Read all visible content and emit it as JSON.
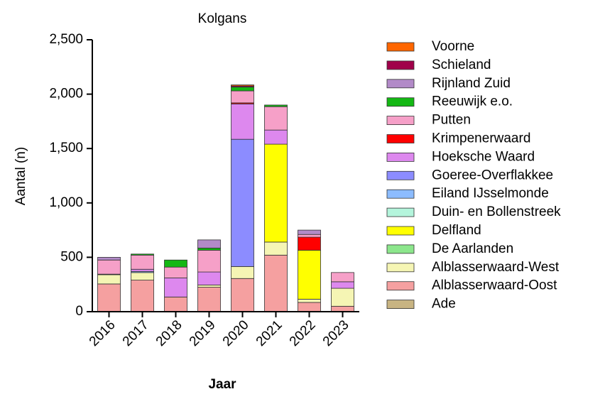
{
  "chart_data": {
    "type": "stacked_bar",
    "title": "Kolgans",
    "x_label": "Jaar",
    "y_label": "Aantal (n)",
    "categories": [
      "2016",
      "2017",
      "2018",
      "2019",
      "2020",
      "2021",
      "2022",
      "2023"
    ],
    "ylim": [
      0,
      2500
    ],
    "yticks": [
      0,
      500,
      {
        "value": 1000,
        "label": "1,000"
      },
      {
        "value": 1500,
        "label": "1,500"
      },
      {
        "value": 2000,
        "label": "2,000"
      },
      {
        "value": 2500,
        "label": "2,500"
      }
    ],
    "series": [
      {
        "name": "Ade",
        "color": "#c8b482",
        "values": [
          0,
          0,
          0,
          0,
          0,
          0,
          0,
          0
        ]
      },
      {
        "name": "Alblasserwaard-Oost",
        "color": "#f5a0a0",
        "values": [
          255,
          290,
          135,
          225,
          305,
          520,
          85,
          50
        ]
      },
      {
        "name": "Alblasserwaard-West",
        "color": "#f5f5b4",
        "values": [
          85,
          70,
          0,
          20,
          110,
          120,
          30,
          165
        ]
      },
      {
        "name": "De Aarlanden",
        "color": "#8ce68c",
        "values": [
          0,
          0,
          0,
          0,
          0,
          0,
          0,
          0
        ]
      },
      {
        "name": "Delfland",
        "color": "#ffff00",
        "values": [
          0,
          0,
          0,
          0,
          0,
          900,
          450,
          0
        ]
      },
      {
        "name": "Duin- en Bollenstreek",
        "color": "#b4f5dc",
        "values": [
          0,
          0,
          0,
          0,
          0,
          0,
          0,
          0
        ]
      },
      {
        "name": "Eiland IJsselmonde",
        "color": "#8cbcff",
        "values": [
          0,
          10,
          0,
          0,
          0,
          0,
          0,
          0
        ]
      },
      {
        "name": "Goeree-Overflakkee",
        "color": "#8c8cff",
        "values": [
          0,
          0,
          0,
          0,
          1170,
          0,
          0,
          0
        ]
      },
      {
        "name": "Hoeksche Waard",
        "color": "#dd88ee",
        "values": [
          0,
          20,
          175,
          120,
          325,
          130,
          0,
          60
        ]
      },
      {
        "name": "Krimpenerwaard",
        "color": "#ff0000",
        "values": [
          5,
          0,
          0,
          0,
          10,
          0,
          120,
          0
        ]
      },
      {
        "name": "Putten",
        "color": "#f6a0c8",
        "values": [
          130,
          130,
          100,
          200,
          110,
          215,
          25,
          85
        ]
      },
      {
        "name": "Reeuwijk e.o.",
        "color": "#14b814",
        "values": [
          0,
          10,
          65,
          20,
          35,
          15,
          0,
          0
        ]
      },
      {
        "name": "Rijnland Zuid",
        "color": "#b28ac8",
        "values": [
          25,
          0,
          0,
          75,
          0,
          0,
          40,
          0
        ]
      },
      {
        "name": "Schieland",
        "color": "#a0004a",
        "values": [
          0,
          0,
          0,
          0,
          10,
          0,
          0,
          0
        ]
      },
      {
        "name": "Voorne",
        "color": "#ff6600",
        "values": [
          0,
          0,
          0,
          0,
          10,
          0,
          0,
          0
        ]
      }
    ]
  }
}
